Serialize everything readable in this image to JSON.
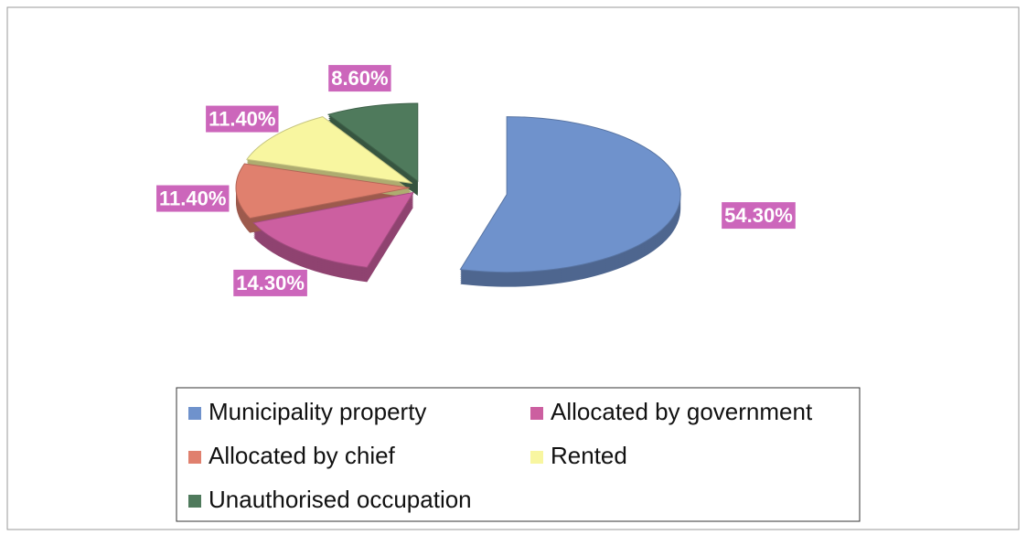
{
  "chart_data": {
    "type": "pie",
    "categories": [
      "Municipality property",
      "Allocated by government",
      "Allocated by chief",
      "Rented",
      "Unauthorised occupation"
    ],
    "values": [
      54.3,
      14.3,
      11.4,
      11.4,
      8.6
    ],
    "value_labels": [
      "54.30%",
      "14.30%",
      "11.40%",
      "11.40%",
      "8.60%"
    ],
    "colors": [
      "#6f92cc",
      "#cc5fa0",
      "#e0806e",
      "#f8f6a0",
      "#4f7a5c"
    ],
    "legend": "bottom"
  }
}
